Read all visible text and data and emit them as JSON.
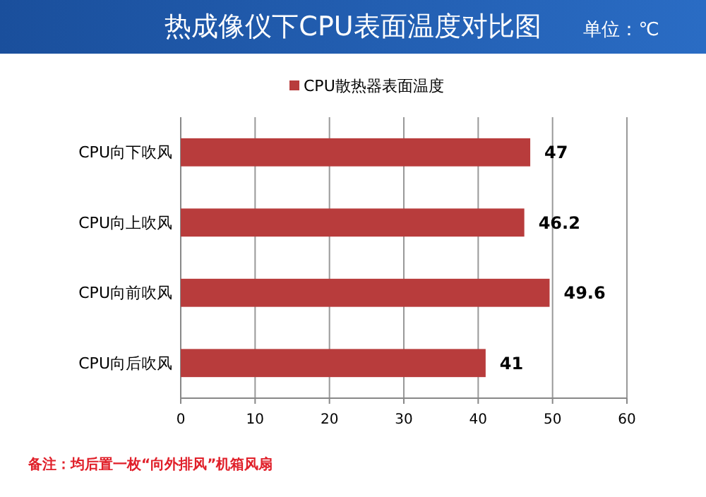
{
  "chart_data": {
    "type": "bar",
    "orientation": "horizontal",
    "title": "热成像仪下CPU表面温度对比图",
    "subtitle": "单位：℃",
    "categories": [
      "CPU向下吹风",
      "CPU向上吹风",
      "CPU向前吹风",
      "CPU向后吹风"
    ],
    "series": [
      {
        "name": "CPU散热器表面温度",
        "color": "#b83c3c",
        "values": [
          47,
          46.2,
          49.6,
          41
        ]
      }
    ],
    "xlim": [
      0,
      60
    ],
    "xticks": [
      0,
      10,
      20,
      30,
      40,
      50,
      60
    ],
    "grid": "x",
    "legend": "top",
    "data_labels": true,
    "annotations": [
      "备注：均后置一枚“向外排风”机箱风扇"
    ]
  }
}
